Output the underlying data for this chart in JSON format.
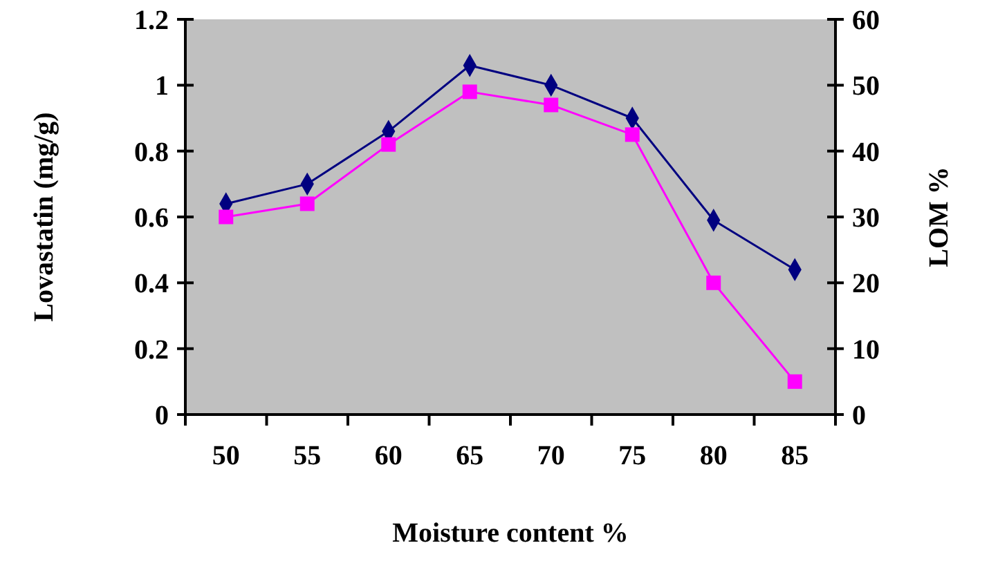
{
  "chart_data": {
    "type": "line",
    "xlabel": "Moisture content %",
    "ylabel": "Lovastatin (mg/g)",
    "y2label": "LOM %",
    "categories": [
      "50",
      "55",
      "60",
      "65",
      "70",
      "75",
      "80",
      "85"
    ],
    "series": [
      {
        "color": "#000080",
        "marker": "diamond",
        "values": [
          0.64,
          0.7,
          0.86,
          1.06,
          1.0,
          0.9,
          0.59,
          0.44
        ]
      },
      {
        "color": "#ff00ff",
        "marker": "square",
        "axis": "y2",
        "values": [
          30,
          32,
          41,
          49,
          47,
          42.5,
          20,
          5
        ]
      }
    ],
    "ylim": [
      0,
      1.2
    ],
    "yticks": [
      0,
      0.2,
      0.4,
      0.6,
      0.8,
      1,
      1.2
    ],
    "y2lim": [
      0,
      60
    ],
    "y2ticks": [
      0,
      10,
      20,
      30,
      40,
      50,
      60
    ],
    "grid": false
  }
}
